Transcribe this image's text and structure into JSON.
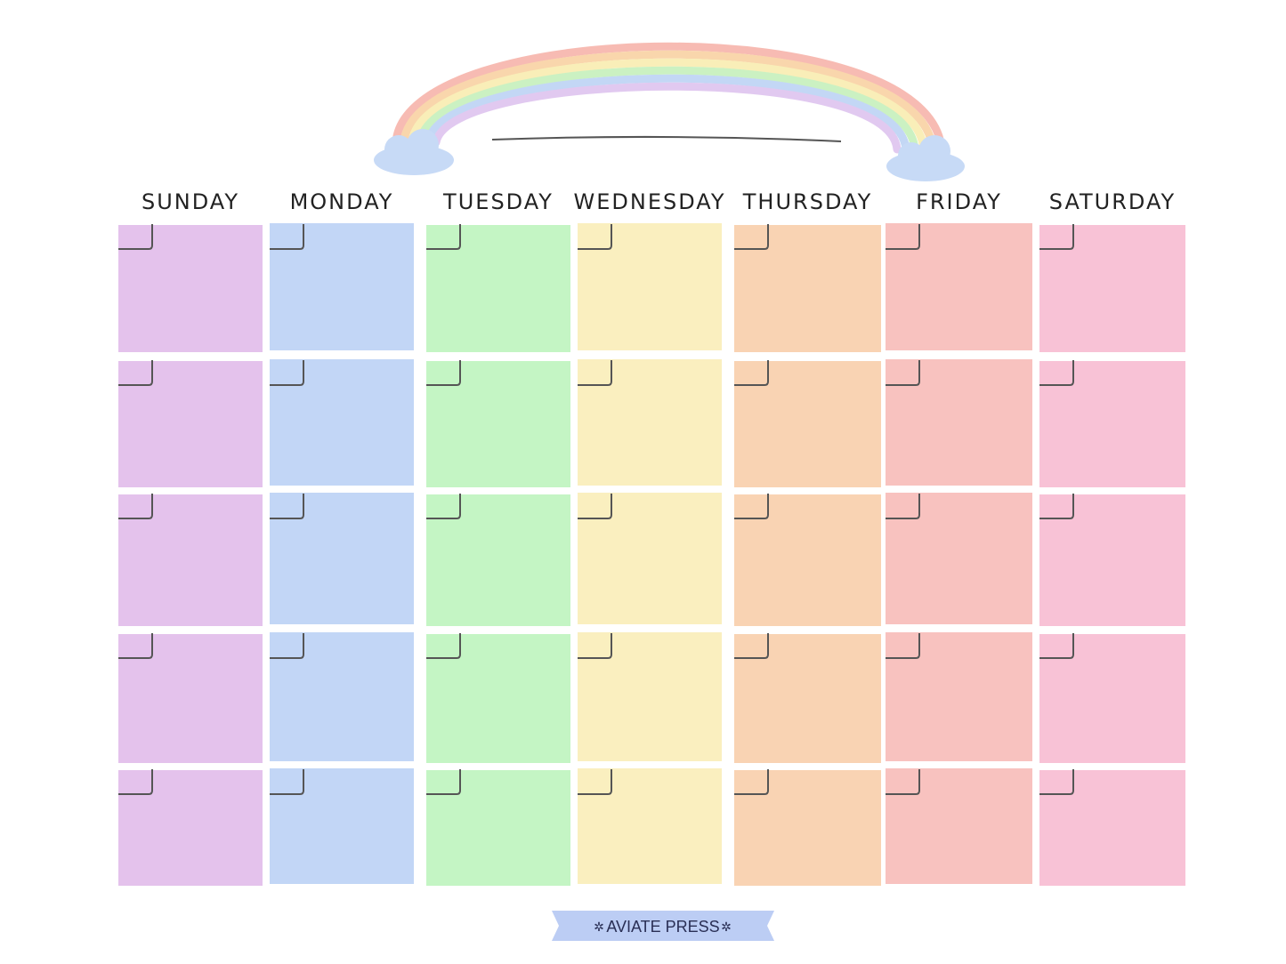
{
  "header": {
    "days": [
      "SUNDAY",
      "MONDAY",
      "TUESDAY",
      "WEDNESDAY",
      "THURSDAY",
      "FRIDAY",
      "SATURDAY"
    ]
  },
  "footer": {
    "brand": "AVIATE PRESS"
  }
}
